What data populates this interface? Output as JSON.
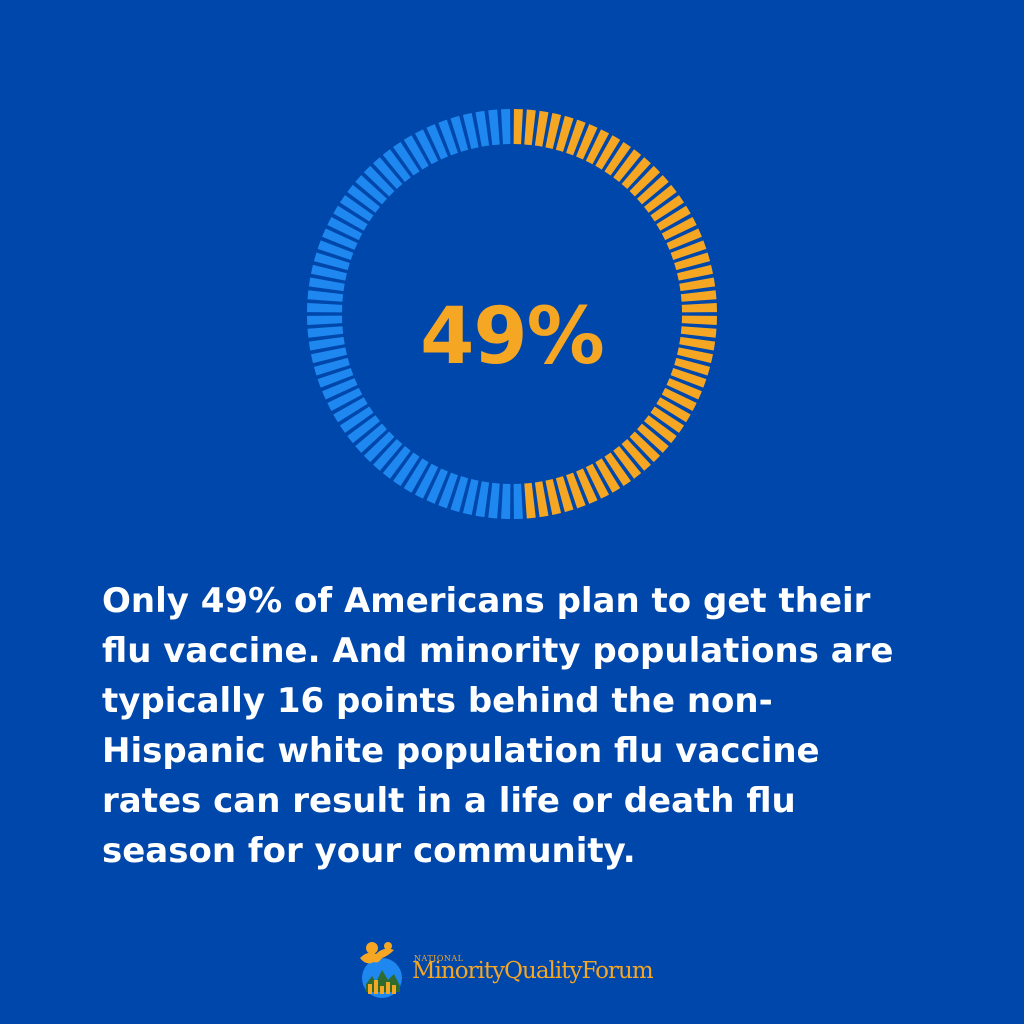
{
  "chart_data": {
    "type": "pie",
    "value_percent": 49,
    "value_label": "49%",
    "total_segments": 100,
    "colors": {
      "filled": "#F5A623",
      "remainder": "#1E88F0",
      "background": "#0047AB"
    }
  },
  "message": {
    "lines": [
      "Only 49% of Americans plan to get their",
      "flu vaccine. And minority populations are",
      "typically 16 points behind the non-",
      "Hispanic white population flu vaccine",
      "rates can result in a life or death flu",
      "season for your community."
    ]
  },
  "logo": {
    "small_text": "NATIONAL",
    "name": "MinorityQualityForum",
    "icon": "globe-figure-icon"
  }
}
